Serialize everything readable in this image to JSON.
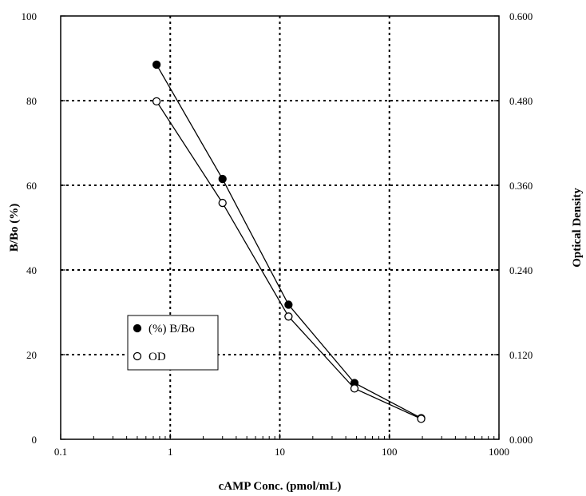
{
  "chart_data": {
    "type": "line",
    "title": "",
    "xlabel": "cAMP Conc. (pmol/mL)",
    "ylabel_left": "B/Bo (%)",
    "ylabel_right": "Optical Density",
    "x_scale": "log",
    "xlim": [
      0.1,
      1000
    ],
    "ylim_left": [
      0,
      100
    ],
    "ylim_right": [
      0.0,
      0.6
    ],
    "x_ticks": [
      "0.1",
      "1",
      "10",
      "100",
      "1000"
    ],
    "y_ticks_left": [
      "0",
      "20",
      "40",
      "60",
      "80",
      "100"
    ],
    "y_ticks_right": [
      "0.000",
      "0.120",
      "0.240",
      "0.360",
      "0.480",
      "0.600"
    ],
    "grid": "dotted, major ticks",
    "legend_position": "lower-left",
    "series": [
      {
        "name": "(%) B/Bo",
        "axis": "left",
        "marker": "filled-circle",
        "color": "#000000",
        "x": [
          0.75,
          3.0,
          12.0,
          48.0,
          195.0
        ],
        "y": [
          88.5,
          61.5,
          31.8,
          13.3,
          5.0
        ]
      },
      {
        "name": "OD",
        "axis": "right",
        "marker": "open-circle",
        "color": "#000000",
        "x": [
          0.75,
          3.0,
          12.0,
          48.0,
          195.0
        ],
        "y": [
          0.479,
          0.335,
          0.174,
          0.072,
          0.029
        ]
      }
    ]
  }
}
